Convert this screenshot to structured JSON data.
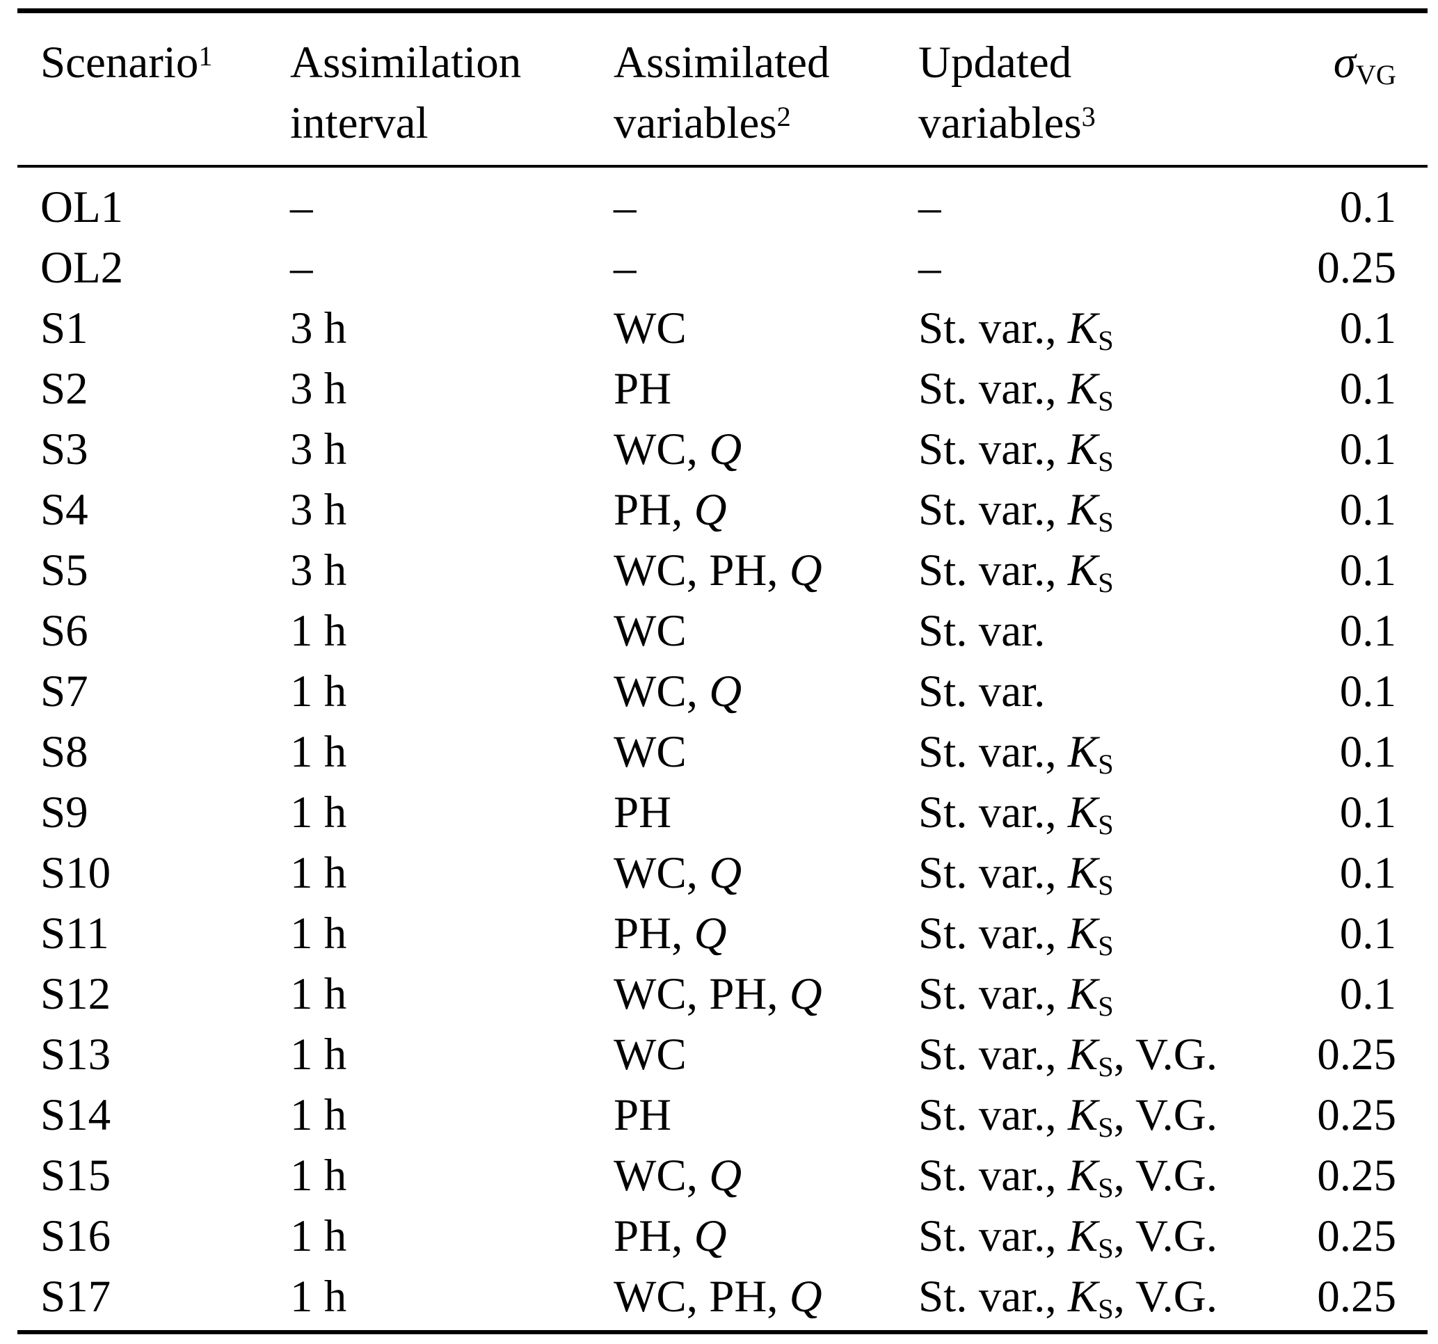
{
  "table": {
    "columns": [
      {
        "id": "scenario",
        "header_lines": [
          [
            {
              "t": "Scenario"
            },
            {
              "t": "1",
              "sup": true
            }
          ],
          []
        ],
        "align": "left"
      },
      {
        "id": "interval",
        "header_lines": [
          [
            {
              "t": "Assimilation"
            }
          ],
          [
            {
              "t": "interval"
            }
          ]
        ],
        "align": "left"
      },
      {
        "id": "assimilated",
        "header_lines": [
          [
            {
              "t": "Assimilated"
            }
          ],
          [
            {
              "t": "variables"
            },
            {
              "t": "2",
              "sup": true
            }
          ]
        ],
        "align": "left"
      },
      {
        "id": "updated",
        "header_lines": [
          [
            {
              "t": "Updated"
            }
          ],
          [
            {
              "t": "variables"
            },
            {
              "t": "3",
              "sup": true
            }
          ]
        ],
        "align": "left"
      },
      {
        "id": "sigma_vg",
        "header_lines": [
          [
            {
              "t": "σ",
              "i": true
            },
            {
              "t": "VG",
              "sub": true
            }
          ],
          []
        ],
        "align": "right"
      }
    ],
    "rows": [
      {
        "scenario": "OL1",
        "interval": "–",
        "assimilated": [
          {
            "t": "–"
          }
        ],
        "updated": [
          {
            "t": "–"
          }
        ],
        "sigma_vg": "0.1"
      },
      {
        "scenario": "OL2",
        "interval": "–",
        "assimilated": [
          {
            "t": "–"
          }
        ],
        "updated": [
          {
            "t": "–"
          }
        ],
        "sigma_vg": "0.25"
      },
      {
        "scenario": "S1",
        "interval": "3 h",
        "assimilated": [
          {
            "t": "WC"
          }
        ],
        "updated": [
          {
            "t": "St. var., "
          },
          {
            "t": "K",
            "i": true
          },
          {
            "t": "S",
            "sub": true
          }
        ],
        "sigma_vg": "0.1"
      },
      {
        "scenario": "S2",
        "interval": "3 h",
        "assimilated": [
          {
            "t": "PH"
          }
        ],
        "updated": [
          {
            "t": "St. var., "
          },
          {
            "t": "K",
            "i": true
          },
          {
            "t": "S",
            "sub": true
          }
        ],
        "sigma_vg": "0.1"
      },
      {
        "scenario": "S3",
        "interval": "3 h",
        "assimilated": [
          {
            "t": "WC, "
          },
          {
            "t": "Q",
            "i": true
          }
        ],
        "updated": [
          {
            "t": "St. var., "
          },
          {
            "t": "K",
            "i": true
          },
          {
            "t": "S",
            "sub": true
          }
        ],
        "sigma_vg": "0.1"
      },
      {
        "scenario": "S4",
        "interval": "3 h",
        "assimilated": [
          {
            "t": "PH, "
          },
          {
            "t": "Q",
            "i": true
          }
        ],
        "updated": [
          {
            "t": "St. var., "
          },
          {
            "t": "K",
            "i": true
          },
          {
            "t": "S",
            "sub": true
          }
        ],
        "sigma_vg": "0.1"
      },
      {
        "scenario": "S5",
        "interval": "3 h",
        "assimilated": [
          {
            "t": "WC, PH, "
          },
          {
            "t": "Q",
            "i": true
          }
        ],
        "updated": [
          {
            "t": "St. var., "
          },
          {
            "t": "K",
            "i": true
          },
          {
            "t": "S",
            "sub": true
          }
        ],
        "sigma_vg": "0.1"
      },
      {
        "scenario": "S6",
        "interval": "1 h",
        "assimilated": [
          {
            "t": "WC"
          }
        ],
        "updated": [
          {
            "t": "St. var."
          }
        ],
        "sigma_vg": "0.1"
      },
      {
        "scenario": "S7",
        "interval": "1 h",
        "assimilated": [
          {
            "t": "WC, "
          },
          {
            "t": "Q",
            "i": true
          }
        ],
        "updated": [
          {
            "t": "St. var."
          }
        ],
        "sigma_vg": "0.1"
      },
      {
        "scenario": "S8",
        "interval": "1 h",
        "assimilated": [
          {
            "t": "WC"
          }
        ],
        "updated": [
          {
            "t": "St. var., "
          },
          {
            "t": "K",
            "i": true
          },
          {
            "t": "S",
            "sub": true
          }
        ],
        "sigma_vg": "0.1"
      },
      {
        "scenario": "S9",
        "interval": "1 h",
        "assimilated": [
          {
            "t": "PH"
          }
        ],
        "updated": [
          {
            "t": "St. var., "
          },
          {
            "t": "K",
            "i": true
          },
          {
            "t": "S",
            "sub": true
          }
        ],
        "sigma_vg": "0.1"
      },
      {
        "scenario": "S10",
        "interval": "1 h",
        "assimilated": [
          {
            "t": "WC, "
          },
          {
            "t": "Q",
            "i": true
          }
        ],
        "updated": [
          {
            "t": "St. var., "
          },
          {
            "t": "K",
            "i": true
          },
          {
            "t": "S",
            "sub": true
          }
        ],
        "sigma_vg": "0.1"
      },
      {
        "scenario": "S11",
        "interval": "1 h",
        "assimilated": [
          {
            "t": "PH, "
          },
          {
            "t": "Q",
            "i": true
          }
        ],
        "updated": [
          {
            "t": "St. var., "
          },
          {
            "t": "K",
            "i": true
          },
          {
            "t": "S",
            "sub": true
          }
        ],
        "sigma_vg": "0.1"
      },
      {
        "scenario": "S12",
        "interval": "1 h",
        "assimilated": [
          {
            "t": "WC, PH, "
          },
          {
            "t": "Q",
            "i": true
          }
        ],
        "updated": [
          {
            "t": "St. var., "
          },
          {
            "t": "K",
            "i": true
          },
          {
            "t": "S",
            "sub": true
          }
        ],
        "sigma_vg": "0.1"
      },
      {
        "scenario": "S13",
        "interval": "1 h",
        "assimilated": [
          {
            "t": "WC"
          }
        ],
        "updated": [
          {
            "t": "St. var., "
          },
          {
            "t": "K",
            "i": true
          },
          {
            "t": "S",
            "sub": true
          },
          {
            "t": ", V.G."
          }
        ],
        "sigma_vg": "0.25"
      },
      {
        "scenario": "S14",
        "interval": "1 h",
        "assimilated": [
          {
            "t": "PH"
          }
        ],
        "updated": [
          {
            "t": "St. var., "
          },
          {
            "t": "K",
            "i": true
          },
          {
            "t": "S",
            "sub": true
          },
          {
            "t": ", V.G."
          }
        ],
        "sigma_vg": "0.25"
      },
      {
        "scenario": "S15",
        "interval": "1 h",
        "assimilated": [
          {
            "t": "WC, "
          },
          {
            "t": "Q",
            "i": true
          }
        ],
        "updated": [
          {
            "t": "St. var., "
          },
          {
            "t": "K",
            "i": true
          },
          {
            "t": "S",
            "sub": true
          },
          {
            "t": ", V.G."
          }
        ],
        "sigma_vg": "0.25"
      },
      {
        "scenario": "S16",
        "interval": "1 h",
        "assimilated": [
          {
            "t": "PH, "
          },
          {
            "t": "Q",
            "i": true
          }
        ],
        "updated": [
          {
            "t": "St. var., "
          },
          {
            "t": "K",
            "i": true
          },
          {
            "t": "S",
            "sub": true
          },
          {
            "t": ", V.G."
          }
        ],
        "sigma_vg": "0.25"
      },
      {
        "scenario": "S17",
        "interval": "1 h",
        "assimilated": [
          {
            "t": "WC, PH, "
          },
          {
            "t": "Q",
            "i": true
          }
        ],
        "updated": [
          {
            "t": "St. var., "
          },
          {
            "t": "K",
            "i": true
          },
          {
            "t": "S",
            "sub": true
          },
          {
            "t": ", V.G."
          }
        ],
        "sigma_vg": "0.25"
      }
    ],
    "colors": {
      "text": "#000000",
      "background": "#ffffff",
      "rule": "#000000"
    }
  }
}
